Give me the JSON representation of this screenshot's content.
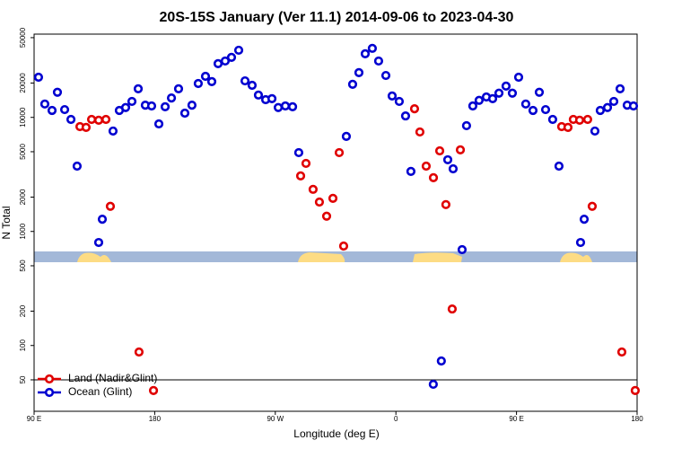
{
  "chart_data": {
    "type": "scatter",
    "title": "20S-15S January (Ver 11.1)   2014-09-06 to 2023-04-30",
    "x_label": "Longitude (deg E)",
    "y_label": "N Total",
    "xlim": [
      90,
      540
    ],
    "xticks": [
      {
        "value": 90,
        "label": "90 E"
      },
      180,
      {
        "value": 270,
        "label": "90 W"
      },
      {
        "value": 360,
        "label": "0"
      },
      {
        "value": 450,
        "label": "90 E"
      },
      {
        "value": 540,
        "label": "180"
      }
    ],
    "ylim": [
      26.5,
      53700
    ],
    "ylog": true,
    "yticks": [
      50,
      100,
      200,
      500,
      1000,
      2000,
      5000,
      10000,
      20000,
      50000
    ],
    "legend": "bottom-left",
    "series": [
      {
        "name": "Land (Nadir&Glint)",
        "color": "#e00000",
        "x": [
          124.2,
          128.8,
          132.9,
          138.2,
          143.6,
          146.9,
          168.3,
          179.1,
          288.9,
          292.9,
          298.2,
          302.9,
          308.3,
          313.0,
          317.7,
          321.0,
          373.9,
          377.9,
          382.6,
          388.0,
          392.7,
          397.3,
          402.0,
          408.1,
          483.7,
          488.4,
          492.4,
          497.1,
          503.1,
          506.5,
          528.6,
          538.6
        ],
        "values": [
          8300,
          8170,
          9600,
          9440,
          9600,
          1660,
          87.7,
          40.3,
          3070,
          3950,
          2340,
          1810,
          1360,
          1950,
          4910,
          745,
          11900,
          7450,
          3740,
          2960,
          5090,
          1720,
          209,
          5190,
          8300,
          8170,
          9600,
          9440,
          9600,
          1660,
          87.7,
          40.3
        ]
      },
      {
        "name": "Ocean (Glint)",
        "color": "#0000d0",
        "x": [
          93.3,
          98.0,
          103.4,
          107.4,
          112.8,
          117.5,
          122.1,
          138.2,
          140.9,
          148.9,
          153.6,
          158.3,
          163.0,
          167.7,
          173.0,
          177.7,
          183.1,
          187.8,
          192.5,
          197.8,
          202.5,
          207.8,
          212.5,
          217.9,
          222.6,
          227.3,
          232.6,
          237.3,
          242.7,
          247.4,
          252.7,
          257.4,
          262.8,
          267.5,
          272.2,
          277.5,
          282.9,
          287.5,
          323.0,
          327.7,
          332.4,
          337.1,
          342.4,
          347.1,
          352.5,
          357.2,
          362.5,
          367.2,
          371.2,
          387.9,
          393.9,
          398.7,
          402.7,
          409.4,
          412.7,
          417.4,
          422.1,
          427.5,
          432.2,
          436.9,
          442.2,
          446.9,
          451.6,
          456.9,
          462.3,
          467.0,
          471.7,
          477.0,
          481.7,
          497.8,
          500.5,
          508.5,
          512.5,
          517.9,
          522.6,
          527.3,
          532.6,
          537.3
        ],
        "values": [
          22500,
          13100,
          11500,
          16600,
          11700,
          9600,
          3740,
          800,
          1280,
          7590,
          11500,
          12200,
          13800,
          17800,
          12800,
          12600,
          8770,
          12400,
          14800,
          17800,
          10900,
          12800,
          19800,
          22900,
          20600,
          29600,
          31200,
          33600,
          38800,
          20900,
          19100,
          15700,
          14300,
          14600,
          12200,
          12600,
          12400,
          4910,
          6810,
          19500,
          24700,
          36100,
          40300,
          31200,
          23300,
          15400,
          13800,
          10300,
          3360,
          45.7,
          73.1,
          4250,
          3540,
          693,
          8460,
          12600,
          14100,
          15100,
          14600,
          16300,
          18800,
          16300,
          22500,
          13100,
          11500,
          16600,
          11700,
          9600,
          3740,
          800,
          1280,
          7590,
          11500,
          12200,
          13800,
          17800,
          12800,
          12600
        ]
      }
    ]
  }
}
